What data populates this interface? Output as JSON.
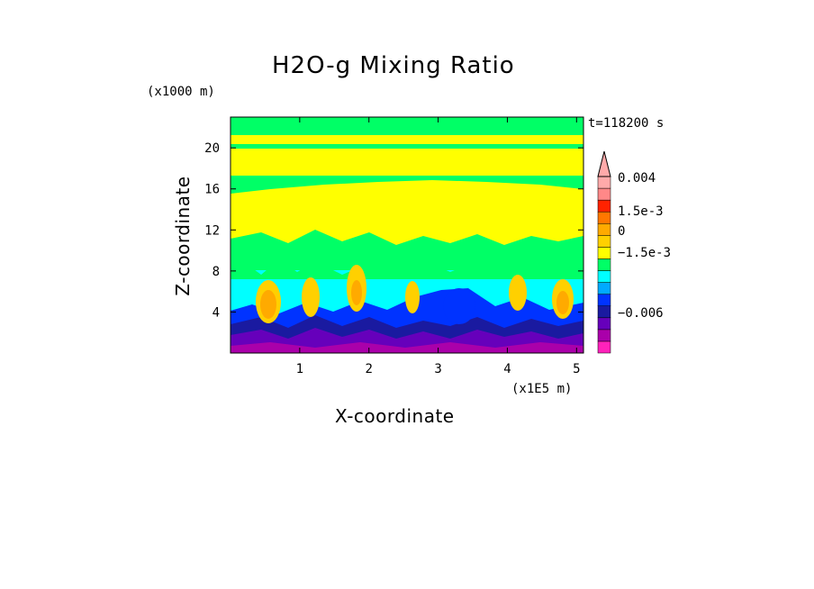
{
  "chart_data": {
    "type": "heatmap",
    "title": "H2O-g Mixing Ratio",
    "xlabel": "X-coordinate",
    "ylabel": "Z-coordinate",
    "x_units": "(x1E5 m)",
    "y_units": "(x1000 m)",
    "time_label": "t=118200 s",
    "x_ticks": [
      1,
      2,
      3,
      4,
      5
    ],
    "x_tick_labels": [
      "1",
      "2",
      "3",
      "4",
      "5"
    ],
    "y_ticks": [
      4,
      8,
      12,
      16,
      20
    ],
    "y_tick_labels": [
      "4",
      "8",
      "12",
      "16",
      "20"
    ],
    "xlim": [
      0,
      5.1
    ],
    "ylim": [
      0,
      23
    ],
    "colorbar": {
      "colors": [
        "#ff22bb",
        "#aa00aa",
        "#6600bb",
        "#1a1aa0",
        "#0033ff",
        "#00aaff",
        "#00ffff",
        "#00ff66",
        "#ffff00",
        "#ffd000",
        "#ffaa00",
        "#ff7700",
        "#ff2200",
        "#ff8888",
        "#ffaaaa"
      ],
      "tick_labels": [
        "0.004",
        "1.5e-3",
        "0",
        "−1.5e-3",
        "−0.006"
      ]
    },
    "legend_position": "right"
  }
}
